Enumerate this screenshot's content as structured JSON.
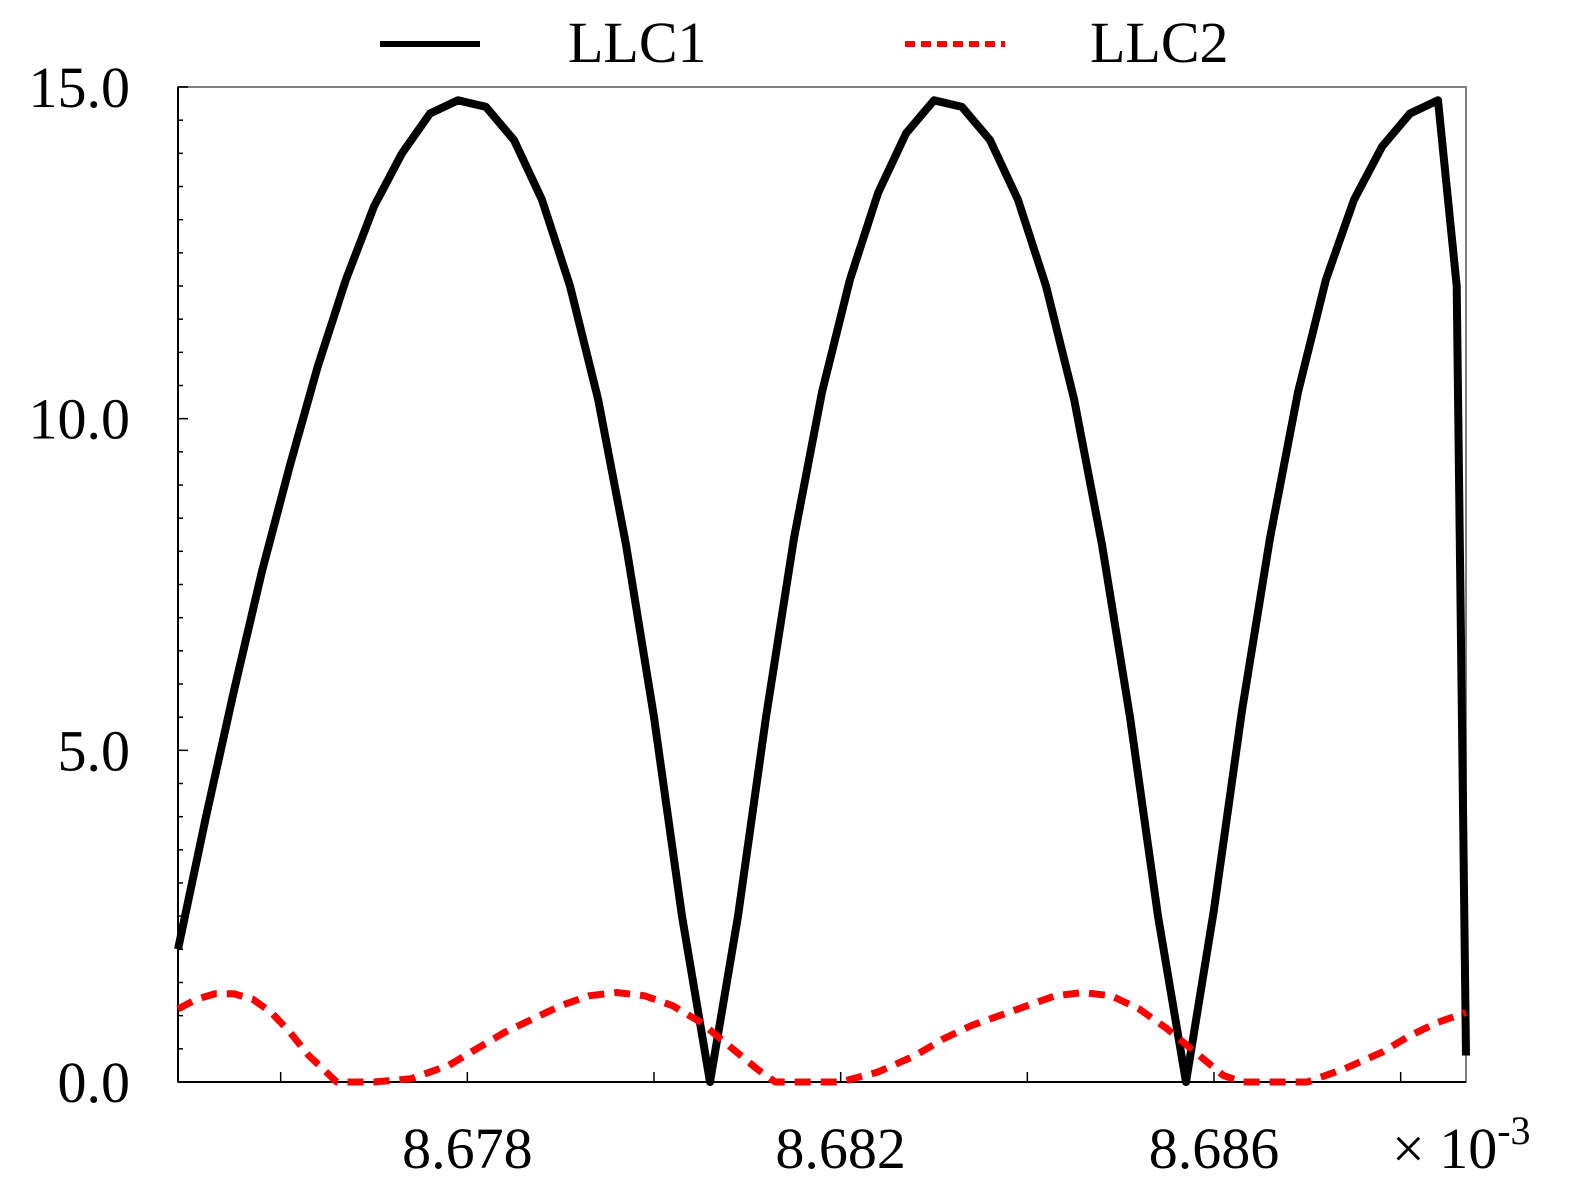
{
  "chart_data": {
    "type": "line",
    "title": "",
    "xlabel": "",
    "ylabel": "",
    "x_multiplier_label": "× 10",
    "x_multiplier_exponent": "-3",
    "xlim": [
      8.6749,
      8.6887
    ],
    "ylim": [
      0,
      15
    ],
    "x_ticks": [
      {
        "value": 8.678,
        "label": "8.678"
      },
      {
        "value": 8.682,
        "label": "8.682"
      },
      {
        "value": 8.686,
        "label": "8.686"
      }
    ],
    "y_ticks": [
      {
        "value": 0,
        "label": "0.0"
      },
      {
        "value": 5,
        "label": "5.0"
      },
      {
        "value": 10,
        "label": "10.0"
      },
      {
        "value": 15,
        "label": "15.0"
      }
    ],
    "grid": false,
    "legend_position": "top",
    "series": [
      {
        "name": "LLC1",
        "color": "#000000",
        "style": "solid",
        "x": [
          8.6749,
          8.6752,
          8.6755,
          8.6758,
          8.6761,
          8.6764,
          8.6767,
          8.677,
          8.6773,
          8.6776,
          8.6779,
          8.6782,
          8.6785,
          8.6788,
          8.6791,
          8.6794,
          8.6797,
          8.68,
          8.6803,
          8.6806,
          8.6809,
          8.6812,
          8.6815,
          8.6818,
          8.6821,
          8.6824,
          8.6827,
          8.683,
          8.6833,
          8.6836,
          8.6839,
          8.6842,
          8.6845,
          8.6848,
          8.6851,
          8.6854,
          8.6857,
          8.686,
          8.6863,
          8.6866,
          8.6869,
          8.6872,
          8.6875,
          8.6878,
          8.6881,
          8.6884,
          8.6886,
          8.6887
        ],
        "y": [
          2.0,
          4.0,
          5.9,
          7.7,
          9.3,
          10.8,
          12.1,
          13.2,
          14.0,
          14.6,
          14.8,
          14.7,
          14.2,
          13.3,
          12.0,
          10.3,
          8.1,
          5.5,
          2.5,
          0.0,
          2.5,
          5.5,
          8.2,
          10.4,
          12.1,
          13.4,
          14.3,
          14.8,
          14.7,
          14.2,
          13.3,
          12.0,
          10.3,
          8.1,
          5.5,
          2.5,
          0.0,
          2.6,
          5.6,
          8.2,
          10.4,
          12.1,
          13.3,
          14.1,
          14.6,
          14.8,
          12.0,
          0.4
        ]
      },
      {
        "name": "LLC2",
        "color": "#ff0000",
        "style": "dashed",
        "x": [
          8.6749,
          8.6751,
          8.6753,
          8.6755,
          8.6757,
          8.6759,
          8.6761,
          8.6763,
          8.6766,
          8.677,
          8.6774,
          8.6778,
          8.6781,
          8.6784,
          8.6787,
          8.679,
          8.6793,
          8.6796,
          8.6799,
          8.6802,
          8.6805,
          8.6808,
          8.6811,
          8.6813,
          8.6816,
          8.682,
          8.6824,
          8.6828,
          8.6831,
          8.6834,
          8.6837,
          8.684,
          8.6843,
          8.6846,
          8.6849,
          8.6852,
          8.6855,
          8.6858,
          8.6861,
          8.6863,
          8.6866,
          8.687,
          8.6874,
          8.6878,
          8.6881,
          8.6884,
          8.6887
        ],
        "y": [
          1.1,
          1.25,
          1.33,
          1.33,
          1.25,
          1.05,
          0.75,
          0.4,
          0.0,
          0.0,
          0.05,
          0.25,
          0.5,
          0.75,
          0.95,
          1.15,
          1.3,
          1.35,
          1.3,
          1.15,
          0.9,
          0.55,
          0.2,
          0.0,
          0.0,
          0.0,
          0.15,
          0.4,
          0.65,
          0.85,
          1.0,
          1.15,
          1.3,
          1.35,
          1.3,
          1.1,
          0.8,
          0.45,
          0.1,
          0.0,
          0.0,
          0.0,
          0.2,
          0.45,
          0.7,
          0.9,
          1.05
        ]
      }
    ]
  }
}
